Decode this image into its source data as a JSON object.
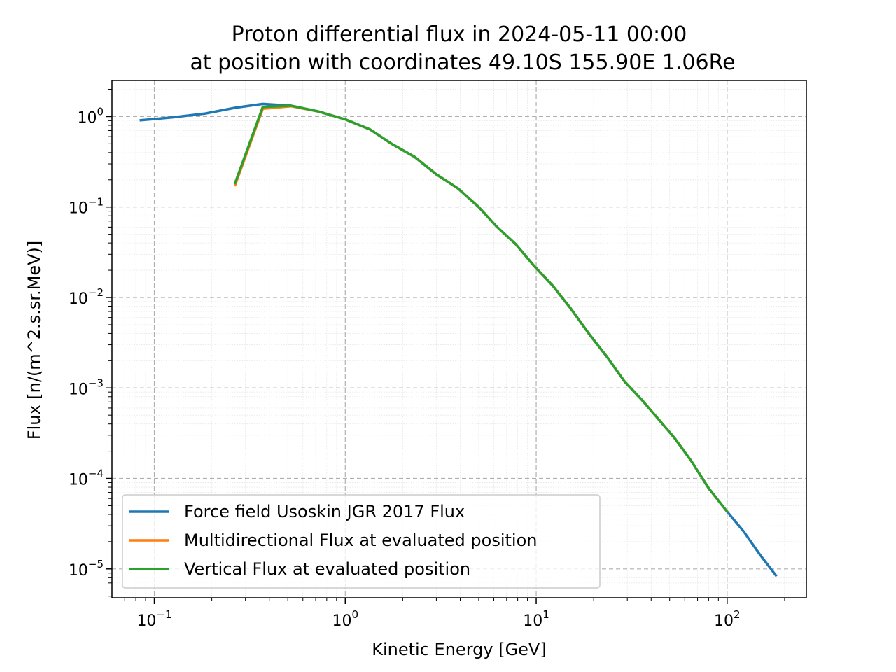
{
  "chart_data": {
    "type": "line",
    "title_line1": "Proton differential flux in 2024-05-11 00:00",
    "title_line2": "at position with coordinates 49.10S 155.90E 1.06Re",
    "xlabel": "Kinetic Energy [GeV]",
    "ylabel": "Flux [n/(m^2.s.sr.MeV)]",
    "xscale": "log",
    "yscale": "log",
    "xlim": [
      0.06,
      260
    ],
    "ylim": [
      4.8e-06,
      2.5
    ],
    "xticks": [
      {
        "value": 0.1,
        "base": "10",
        "exp": "−1"
      },
      {
        "value": 1,
        "base": "10",
        "exp": "0"
      },
      {
        "value": 10,
        "base": "10",
        "exp": "1"
      },
      {
        "value": 100,
        "base": "10",
        "exp": "2"
      }
    ],
    "yticks": [
      {
        "value": 1,
        "base": "10",
        "exp": "0"
      },
      {
        "value": 0.1,
        "base": "10",
        "exp": "−1"
      },
      {
        "value": 0.01,
        "base": "10",
        "exp": "−2"
      },
      {
        "value": 0.001,
        "base": "10",
        "exp": "−3"
      },
      {
        "value": 0.0001,
        "base": "10",
        "exp": "−4"
      },
      {
        "value": 1e-05,
        "base": "10",
        "exp": "−5"
      }
    ],
    "grid": true,
    "legend_position": "lower-left",
    "series": [
      {
        "name": "Force field Usoskin JGR 2017 Flux",
        "color": "#1f77b4",
        "x": [
          0.085,
          0.125,
          0.185,
          0.265,
          0.37,
          0.52,
          0.72,
          1.0,
          1.35,
          1.75,
          2.3,
          3.0,
          3.9,
          5.0,
          6.2,
          7.8,
          9.8,
          12.2,
          15.2,
          19.0,
          23.5,
          29.0,
          35.5,
          43.0,
          53.0,
          65.0,
          80.0,
          100.0,
          122.0,
          148.0,
          180.0
        ],
        "y": [
          0.91,
          0.98,
          1.08,
          1.25,
          1.38,
          1.32,
          1.14,
          0.93,
          0.72,
          0.5,
          0.36,
          0.23,
          0.16,
          0.1,
          0.061,
          0.039,
          0.022,
          0.0135,
          0.0075,
          0.0039,
          0.0022,
          0.00118,
          0.00075,
          0.00047,
          0.00028,
          0.000155,
          7.8e-05,
          4.3e-05,
          2.6e-05,
          1.45e-05,
          8.5e-06
        ]
      },
      {
        "name": "Multidirectional Flux at evaluated position",
        "color": "#ff7f0e",
        "x": [
          0.265,
          0.37,
          0.52,
          0.72,
          1.0,
          1.35,
          1.75,
          2.3,
          3.0,
          3.9,
          5.0,
          6.2,
          7.8,
          9.8,
          12.2,
          15.2,
          19.0,
          23.5,
          29.0,
          35.5,
          43.0,
          53.0,
          65.0,
          80.0,
          100.0
        ],
        "y": [
          0.175,
          1.22,
          1.3,
          1.14,
          0.93,
          0.72,
          0.5,
          0.36,
          0.23,
          0.16,
          0.1,
          0.061,
          0.039,
          0.022,
          0.0135,
          0.0075,
          0.0039,
          0.0022,
          0.00118,
          0.00075,
          0.00047,
          0.00028,
          0.000155,
          7.8e-05,
          4.3e-05
        ]
      },
      {
        "name": "Vertical Flux at evaluated position",
        "color": "#2ca02c",
        "x": [
          0.265,
          0.37,
          0.52,
          0.72,
          1.0,
          1.35,
          1.75,
          2.3,
          3.0,
          3.9,
          5.0,
          6.2,
          7.8,
          9.8,
          12.2,
          15.2,
          19.0,
          23.5,
          29.0,
          35.5,
          43.0,
          53.0,
          65.0,
          80.0,
          100.0
        ],
        "y": [
          0.185,
          1.28,
          1.32,
          1.14,
          0.93,
          0.72,
          0.5,
          0.36,
          0.23,
          0.16,
          0.1,
          0.061,
          0.039,
          0.022,
          0.0135,
          0.0075,
          0.0039,
          0.0022,
          0.00118,
          0.00075,
          0.00047,
          0.00028,
          0.000155,
          7.8e-05,
          4.3e-05
        ]
      }
    ]
  }
}
